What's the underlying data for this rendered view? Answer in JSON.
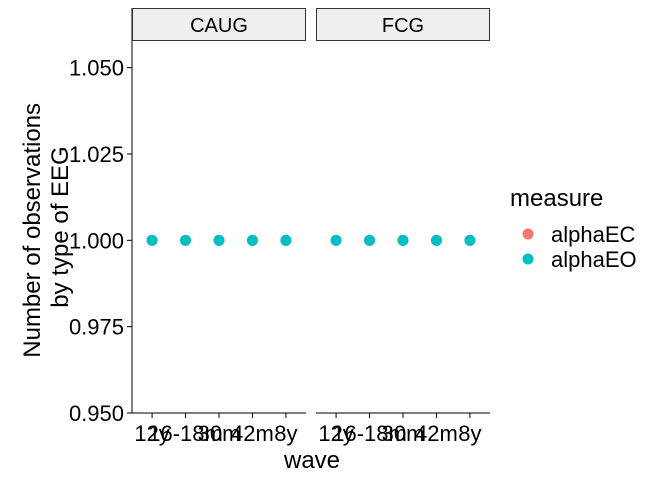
{
  "chart_data": {
    "type": "scatter",
    "facet_var_label": "",
    "panels": [
      {
        "strip": "CAUG"
      },
      {
        "strip": "FCG"
      }
    ],
    "categories": [
      "12y",
      "16-18m",
      "30m",
      "42m",
      "8y"
    ],
    "yticks": [
      "1.050",
      "1.025",
      "1.000",
      "0.975",
      "0.950"
    ],
    "ytick_values": [
      1.05,
      1.025,
      1.0,
      0.975,
      0.95
    ],
    "ylim": [
      0.95,
      1.058
    ],
    "xlabel": "wave",
    "ylabel_lines": [
      "Number of observations",
      "by type of EEG"
    ],
    "series": [
      {
        "name": "alphaEC",
        "color": "#F8766D",
        "values": {
          "CAUG": [
            1,
            1,
            1,
            1,
            1
          ],
          "FCG": [
            1,
            1,
            1,
            1,
            1
          ]
        }
      },
      {
        "name": "alphaEO",
        "color": "#00BFC4",
        "values": {
          "CAUG": [
            1,
            1,
            1,
            1,
            1
          ],
          "FCG": [
            1,
            1,
            1,
            1,
            1
          ]
        }
      }
    ],
    "legend": {
      "title": "measure",
      "entries": [
        "alphaEC",
        "alphaEO"
      ],
      "position": "right"
    },
    "grid": false,
    "strip_fill": "#EFEFEF"
  }
}
